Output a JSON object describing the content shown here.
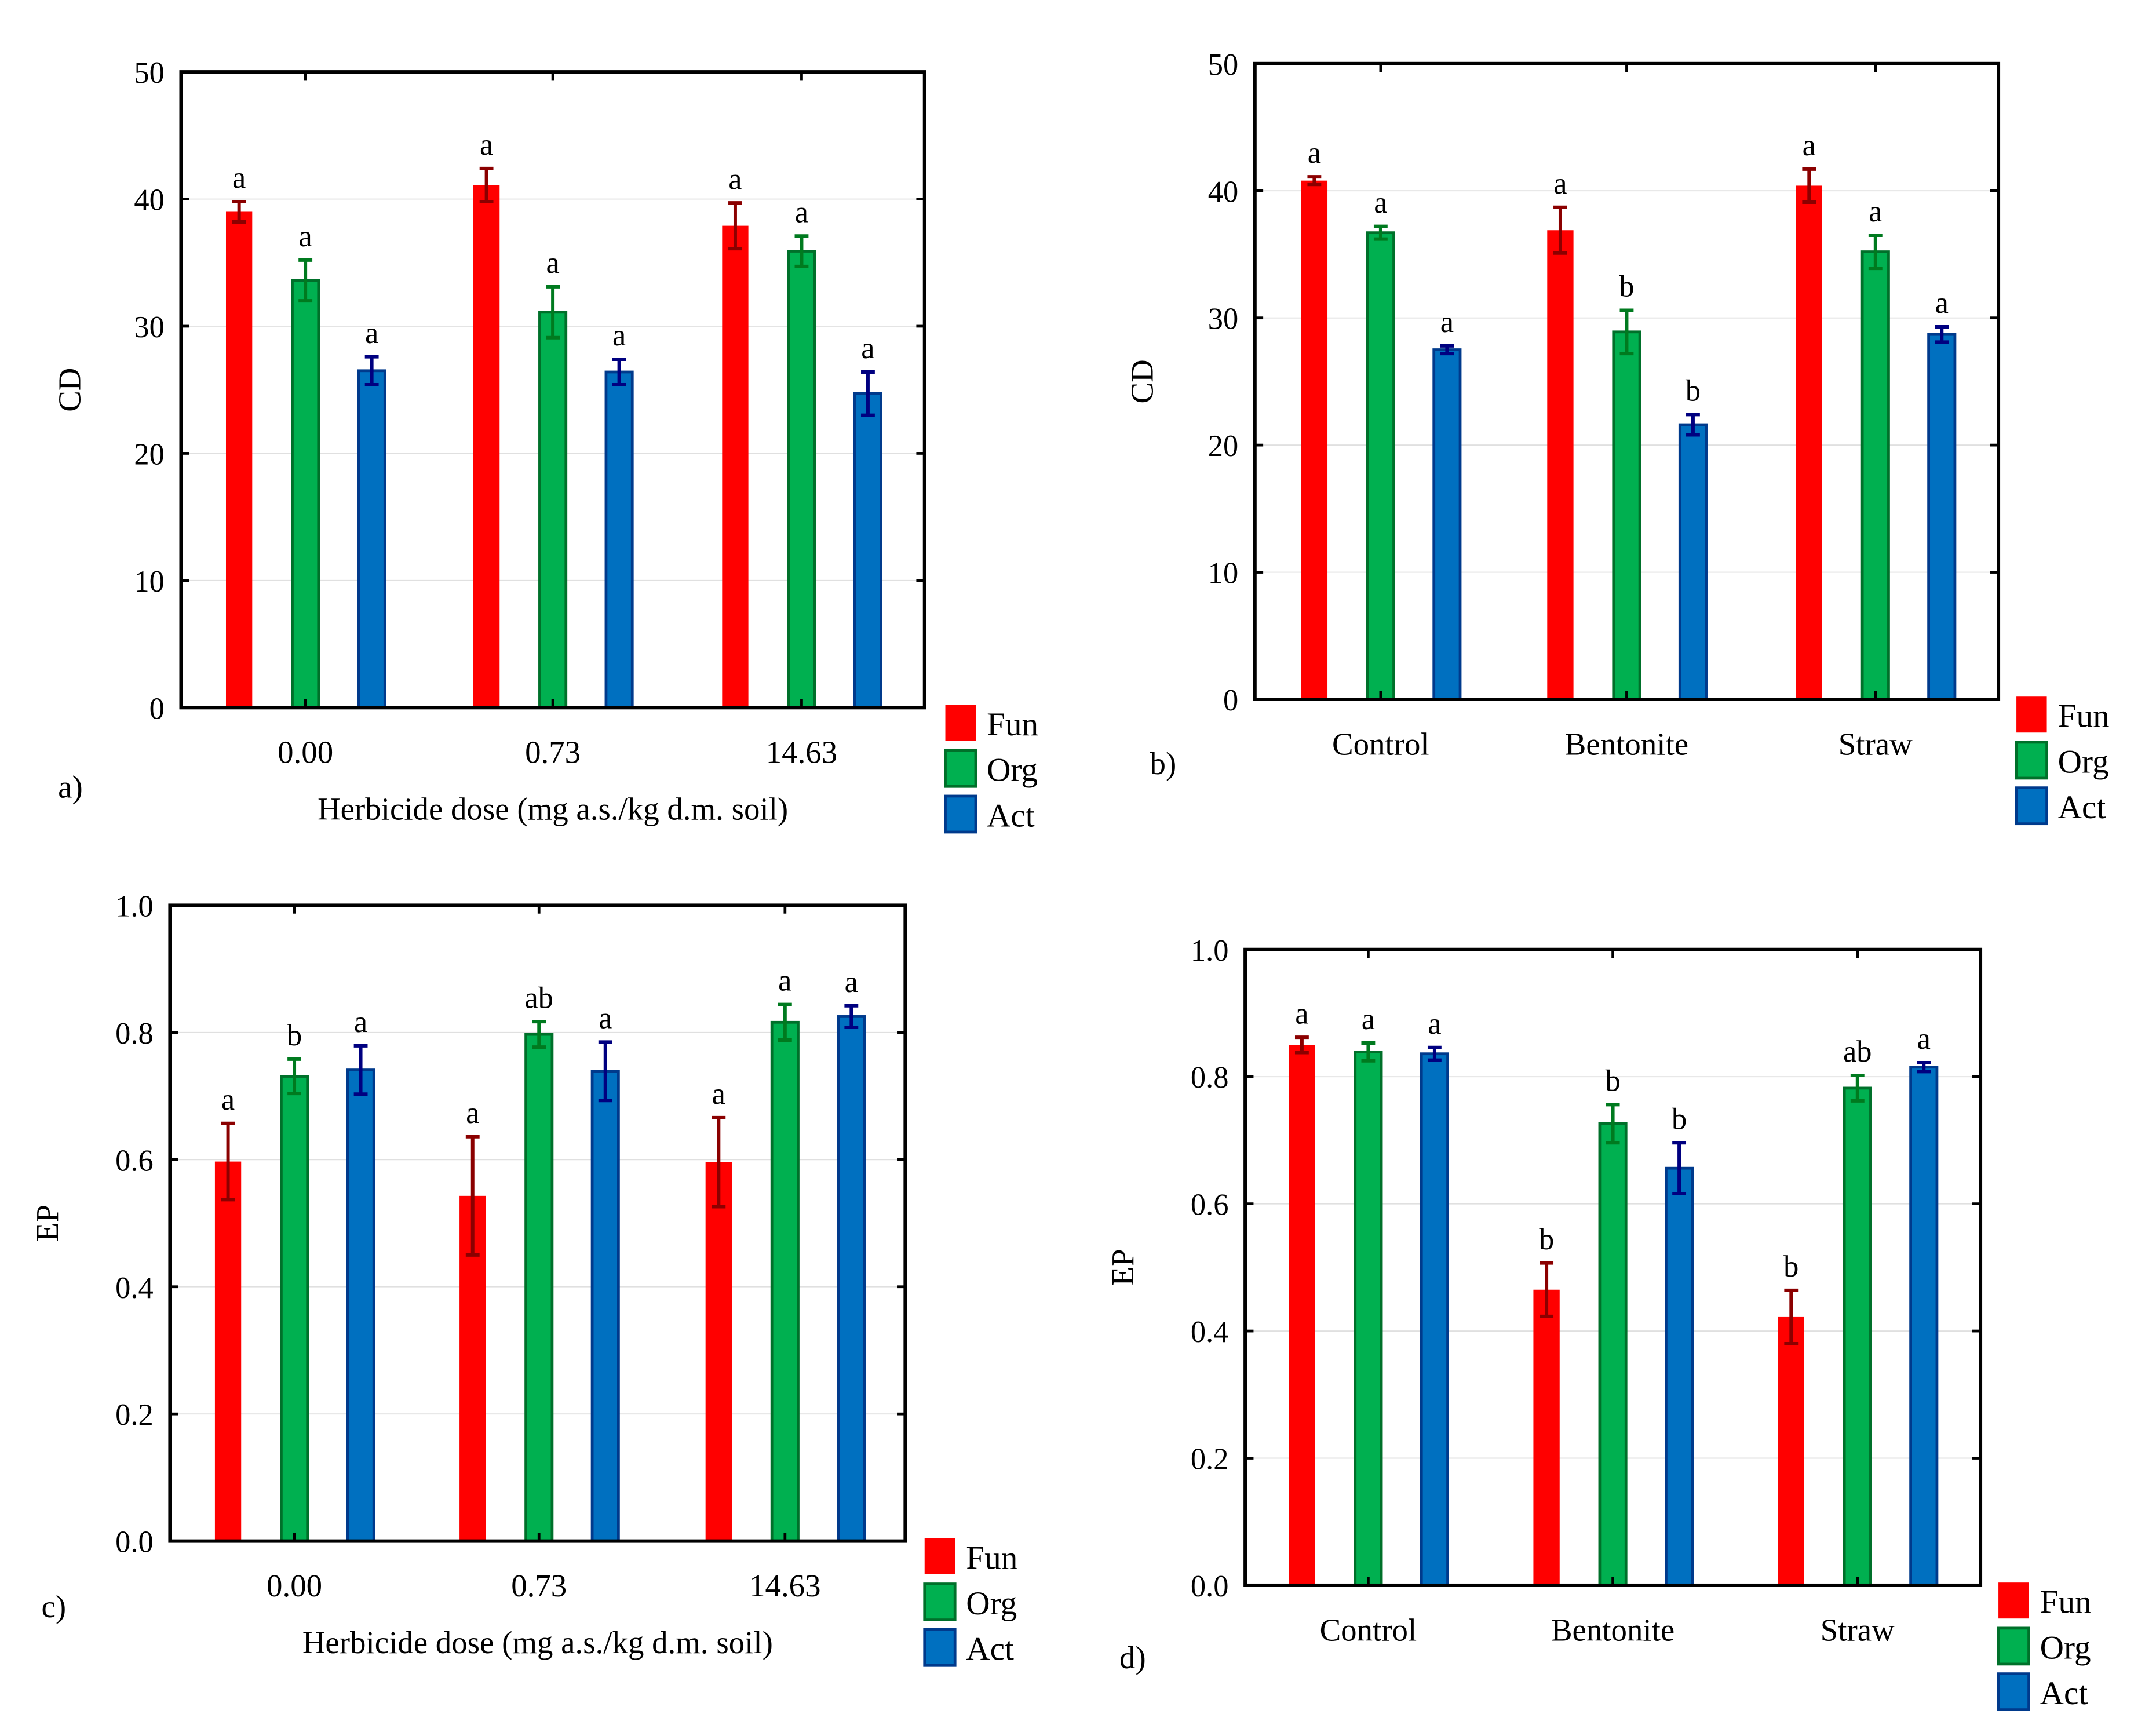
{
  "colors": {
    "Fun": "#ff0000",
    "Org": "#00b050",
    "Act": "#0070c0",
    "Fun_err": "#8b0000",
    "Org_err": "#007a1f",
    "Act_err": "#000080",
    "Org_edge": "#00702a",
    "Act_edge": "#003a8c",
    "grid": "#e0e0e0"
  },
  "chart_data": [
    {
      "panel_label": "a)",
      "type": "bar",
      "ylabel": "CD",
      "xlabel": "Herbicide dose (mg a.s./kg d.m. soil)",
      "categories": [
        "0.00",
        "0.73",
        "14.63"
      ],
      "ylim": [
        0,
        50
      ],
      "yticks": [
        "0",
        "10",
        "20",
        "30",
        "40",
        "50"
      ],
      "grid": true,
      "legend": {
        "placement": "bottom-right-outside",
        "entries": [
          "Fun",
          "Org",
          "Act"
        ]
      },
      "series": [
        {
          "name": "Fun",
          "values": [
            39.0,
            41.1,
            37.9
          ],
          "errors": [
            0.8,
            1.3,
            1.8
          ],
          "letters": [
            "a",
            "a",
            "a"
          ]
        },
        {
          "name": "Org",
          "values": [
            33.6,
            31.1,
            35.9
          ],
          "errors": [
            1.6,
            2.0,
            1.2
          ],
          "letters": [
            "a",
            "a",
            "a"
          ]
        },
        {
          "name": "Act",
          "values": [
            26.5,
            26.4,
            24.7
          ],
          "errors": [
            1.1,
            1.0,
            1.7
          ],
          "letters": [
            "a",
            "a",
            "a"
          ]
        }
      ]
    },
    {
      "panel_label": "b)",
      "type": "bar",
      "ylabel": "CD",
      "xlabel": "",
      "categories": [
        "Control",
        "Bentonite",
        "Straw"
      ],
      "ylim": [
        0,
        50
      ],
      "yticks": [
        "0",
        "10",
        "20",
        "30",
        "40",
        "50"
      ],
      "grid": true,
      "legend": {
        "placement": "bottom-right-outside",
        "entries": [
          "Fun",
          "Org",
          "Act"
        ]
      },
      "series": [
        {
          "name": "Fun",
          "values": [
            40.8,
            36.9,
            40.4
          ],
          "errors": [
            0.3,
            1.8,
            1.3
          ],
          "letters": [
            "a",
            "a",
            "a"
          ]
        },
        {
          "name": "Org",
          "values": [
            36.7,
            28.9,
            35.2
          ],
          "errors": [
            0.5,
            1.7,
            1.3
          ],
          "letters": [
            "a",
            "b",
            "a"
          ]
        },
        {
          "name": "Act",
          "values": [
            27.5,
            21.6,
            28.7
          ],
          "errors": [
            0.3,
            0.8,
            0.6
          ],
          "letters": [
            "a",
            "b",
            "a"
          ]
        }
      ]
    },
    {
      "panel_label": "c)",
      "type": "bar",
      "ylabel": "EP",
      "xlabel": "Herbicide dose (mg a.s./kg d.m. soil)",
      "categories": [
        "0.00",
        "0.73",
        "14.63"
      ],
      "ylim": [
        0,
        1
      ],
      "yticks": [
        "0.0",
        "0.2",
        "0.4",
        "0.6",
        "0.8",
        "1.0"
      ],
      "grid": true,
      "legend": {
        "placement": "bottom-right-outside",
        "entries": [
          "Fun",
          "Org",
          "Act"
        ]
      },
      "series": [
        {
          "name": "Fun",
          "values": [
            0.597,
            0.543,
            0.596
          ],
          "errors": [
            0.06,
            0.093,
            0.07
          ],
          "letters": [
            "a",
            "a",
            "a"
          ]
        },
        {
          "name": "Org",
          "values": [
            0.731,
            0.797,
            0.816
          ],
          "errors": [
            0.027,
            0.02,
            0.028
          ],
          "letters": [
            "b",
            "ab",
            "a"
          ]
        },
        {
          "name": "Act",
          "values": [
            0.741,
            0.739,
            0.825
          ],
          "errors": [
            0.038,
            0.046,
            0.017
          ],
          "letters": [
            "a",
            "a",
            "a"
          ]
        }
      ]
    },
    {
      "panel_label": "d)",
      "type": "bar",
      "ylabel": "EP",
      "xlabel": "",
      "categories": [
        "Control",
        "Bentonite",
        "Straw"
      ],
      "ylim": [
        0,
        1
      ],
      "yticks": [
        "0.0",
        "0.2",
        "0.4",
        "0.6",
        "0.8",
        "1.0"
      ],
      "grid": true,
      "legend": {
        "placement": "bottom-right-outside",
        "entries": [
          "Fun",
          "Org",
          "Act"
        ]
      },
      "series": [
        {
          "name": "Fun",
          "values": [
            0.85,
            0.465,
            0.422
          ],
          "errors": [
            0.012,
            0.042,
            0.042
          ],
          "letters": [
            "a",
            "b",
            "b"
          ]
        },
        {
          "name": "Org",
          "values": [
            0.839,
            0.726,
            0.782
          ],
          "errors": [
            0.014,
            0.03,
            0.02
          ],
          "letters": [
            "a",
            "b",
            "ab"
          ]
        },
        {
          "name": "Act",
          "values": [
            0.836,
            0.656,
            0.815
          ],
          "errors": [
            0.01,
            0.04,
            0.007
          ],
          "letters": [
            "a",
            "b",
            "a"
          ]
        }
      ]
    }
  ]
}
